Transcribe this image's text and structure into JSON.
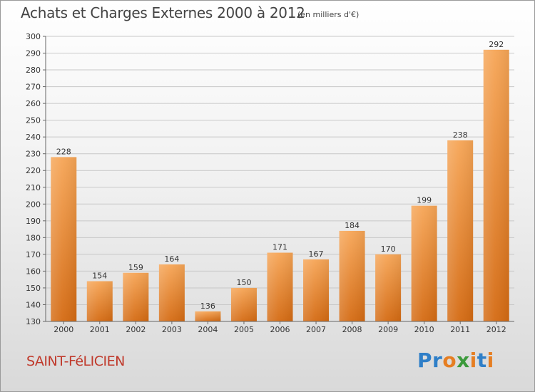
{
  "title": "Achats et Charges Externes 2000 à 2012",
  "subtitle": "(en milliers d'€)",
  "commune": "SAINT-FéLICIEN",
  "logo": {
    "text": "Proxiti",
    "letters": [
      {
        "char": "P",
        "color": "#2f7fc8"
      },
      {
        "char": "r",
        "color": "#2f7fc8"
      },
      {
        "char": "o",
        "color": "#e67e22"
      },
      {
        "char": "x",
        "color": "#3c9a3c"
      },
      {
        "char": "i",
        "color": "#e67e22"
      },
      {
        "char": "t",
        "color": "#2f7fc8"
      },
      {
        "char": "i",
        "color": "#e67e22"
      }
    ]
  },
  "chart_data": {
    "type": "bar",
    "categories": [
      "2000",
      "2001",
      "2002",
      "2003",
      "2004",
      "2005",
      "2006",
      "2007",
      "2008",
      "2009",
      "2010",
      "2011",
      "2012"
    ],
    "values": [
      228,
      154,
      159,
      164,
      136,
      150,
      171,
      167,
      184,
      170,
      199,
      238,
      292
    ],
    "ylim": [
      130,
      300
    ],
    "yticks": [
      130,
      140,
      150,
      160,
      170,
      180,
      190,
      200,
      210,
      220,
      230,
      240,
      250,
      260,
      270,
      280,
      290,
      300
    ],
    "grid": true,
    "bar_color_top": "#f6a556",
    "bar_color_bottom": "#d46a12"
  }
}
